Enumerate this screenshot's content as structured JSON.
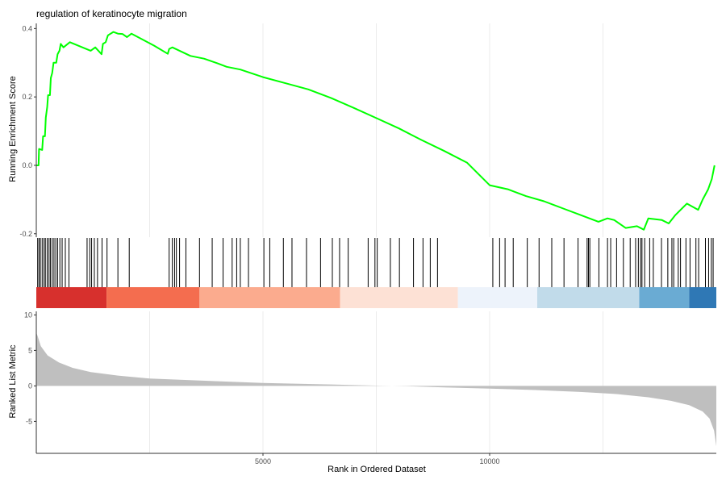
{
  "chart_data": {
    "type": "line",
    "title": "regulation of keratinocyte migration",
    "xlabel": "Rank in Ordered Dataset",
    "xlim": [
      0,
      15000
    ],
    "x_ticks": [
      5000,
      10000
    ],
    "x_tick_labels": [
      "5000",
      "10000"
    ],
    "grid": true,
    "panels": [
      {
        "name": "enrichment",
        "ylabel": "Running Enrichment Score",
        "ylim": [
          -0.21,
          0.415
        ],
        "y_ticks": [
          0.4,
          0.2,
          0.0,
          -0.2
        ],
        "y_tick_labels": [
          "0.4",
          "0.2",
          "0.0",
          "-0.2"
        ],
        "line_color": "#00ff00",
        "points": [
          [
            0,
            0.0
          ],
          [
            50,
            0.0
          ],
          [
            60,
            0.048
          ],
          [
            130,
            0.045
          ],
          [
            150,
            0.085
          ],
          [
            190,
            0.085
          ],
          [
            210,
            0.14
          ],
          [
            240,
            0.17
          ],
          [
            260,
            0.205
          ],
          [
            300,
            0.205
          ],
          [
            320,
            0.255
          ],
          [
            350,
            0.27
          ],
          [
            380,
            0.3
          ],
          [
            440,
            0.3
          ],
          [
            470,
            0.325
          ],
          [
            510,
            0.335
          ],
          [
            540,
            0.355
          ],
          [
            600,
            0.345
          ],
          [
            740,
            0.36
          ],
          [
            1200,
            0.335
          ],
          [
            1300,
            0.345
          ],
          [
            1440,
            0.325
          ],
          [
            1470,
            0.355
          ],
          [
            1530,
            0.36
          ],
          [
            1580,
            0.38
          ],
          [
            1700,
            0.39
          ],
          [
            1800,
            0.385
          ],
          [
            1900,
            0.384
          ],
          [
            2000,
            0.375
          ],
          [
            2100,
            0.385
          ],
          [
            2600,
            0.35
          ],
          [
            2900,
            0.326
          ],
          [
            2930,
            0.34
          ],
          [
            3000,
            0.345
          ],
          [
            3400,
            0.32
          ],
          [
            3700,
            0.312
          ],
          [
            4000,
            0.298
          ],
          [
            4200,
            0.288
          ],
          [
            4500,
            0.28
          ],
          [
            5000,
            0.258
          ],
          [
            5500,
            0.24
          ],
          [
            6000,
            0.222
          ],
          [
            6500,
            0.197
          ],
          [
            7000,
            0.168
          ],
          [
            7500,
            0.138
          ],
          [
            8000,
            0.108
          ],
          [
            8500,
            0.074
          ],
          [
            9000,
            0.042
          ],
          [
            9500,
            0.008
          ],
          [
            10000,
            -0.058
          ],
          [
            10400,
            -0.07
          ],
          [
            10800,
            -0.09
          ],
          [
            11200,
            -0.105
          ],
          [
            11600,
            -0.125
          ],
          [
            12000,
            -0.145
          ],
          [
            12400,
            -0.165
          ],
          [
            12600,
            -0.155
          ],
          [
            12750,
            -0.16
          ],
          [
            13000,
            -0.183
          ],
          [
            13250,
            -0.178
          ],
          [
            13400,
            -0.188
          ],
          [
            13500,
            -0.155
          ],
          [
            13800,
            -0.16
          ],
          [
            13950,
            -0.17
          ],
          [
            14100,
            -0.145
          ],
          [
            14350,
            -0.112
          ],
          [
            14600,
            -0.13
          ],
          [
            14700,
            -0.1
          ],
          [
            14820,
            -0.07
          ],
          [
            14900,
            -0.04
          ],
          [
            14960,
            0.0
          ]
        ]
      },
      {
        "name": "hits",
        "hit_ranks": [
          30,
          60,
          90,
          130,
          170,
          200,
          240,
          280,
          310,
          350,
          390,
          430,
          470,
          520,
          570,
          640,
          720,
          1120,
          1180,
          1220,
          1280,
          1350,
          1450,
          1560,
          1800,
          2050,
          2930,
          3000,
          3050,
          3090,
          3160,
          3300,
          3600,
          3880,
          4120,
          4320,
          4420,
          4500,
          4680,
          5020,
          5150,
          5450,
          5640,
          5960,
          6270,
          6530,
          6690,
          6880,
          7320,
          7470,
          7520,
          7810,
          8010,
          8320,
          8530,
          8690,
          8850,
          10070,
          10220,
          10340,
          10520,
          10830,
          11090,
          11370,
          11640,
          11950,
          12150,
          12180,
          12210,
          12410,
          12600,
          12670,
          12800,
          12950,
          13100,
          13220,
          13280,
          13330,
          13360,
          13420,
          13530,
          13610,
          13790,
          13930,
          14020,
          14060,
          14160,
          14210,
          14330,
          14420,
          14550,
          14610,
          14760,
          14830,
          14890,
          14930
        ]
      },
      {
        "name": "color_band",
        "colors": [
          "#d7302d",
          "#f46d4f",
          "#fbab8e",
          "#fde1d5",
          "#edf3fb",
          "#c1dbea",
          "#6aabd3",
          "#2f78b5"
        ],
        "breaks": [
          0,
          1550,
          3600,
          6700,
          9300,
          11050,
          13300,
          14400,
          15000
        ]
      },
      {
        "name": "ranked_metric",
        "ylabel": "Ranked List Metric",
        "ylim": [
          -9.5,
          10.5
        ],
        "y_ticks": [
          10,
          5,
          0,
          -5
        ],
        "y_tick_labels": [
          "10",
          "5",
          "0",
          "-5"
        ],
        "fill_color": "#bfbfbf",
        "points": [
          [
            0,
            7.5
          ],
          [
            30,
            7.0
          ],
          [
            100,
            5.6
          ],
          [
            250,
            4.3
          ],
          [
            500,
            3.3
          ],
          [
            800,
            2.55
          ],
          [
            1200,
            1.95
          ],
          [
            1800,
            1.45
          ],
          [
            2500,
            1.05
          ],
          [
            3500,
            0.78
          ],
          [
            5000,
            0.42
          ],
          [
            6500,
            0.2
          ],
          [
            7500,
            0.04
          ],
          [
            8200,
            -0.05
          ],
          [
            9000,
            -0.2
          ],
          [
            10000,
            -0.38
          ],
          [
            11000,
            -0.58
          ],
          [
            12000,
            -0.85
          ],
          [
            12800,
            -1.15
          ],
          [
            13500,
            -1.6
          ],
          [
            14000,
            -2.1
          ],
          [
            14400,
            -2.7
          ],
          [
            14700,
            -3.6
          ],
          [
            14850,
            -4.6
          ],
          [
            14950,
            -6.3
          ],
          [
            15000,
            -8.5
          ]
        ]
      }
    ]
  }
}
